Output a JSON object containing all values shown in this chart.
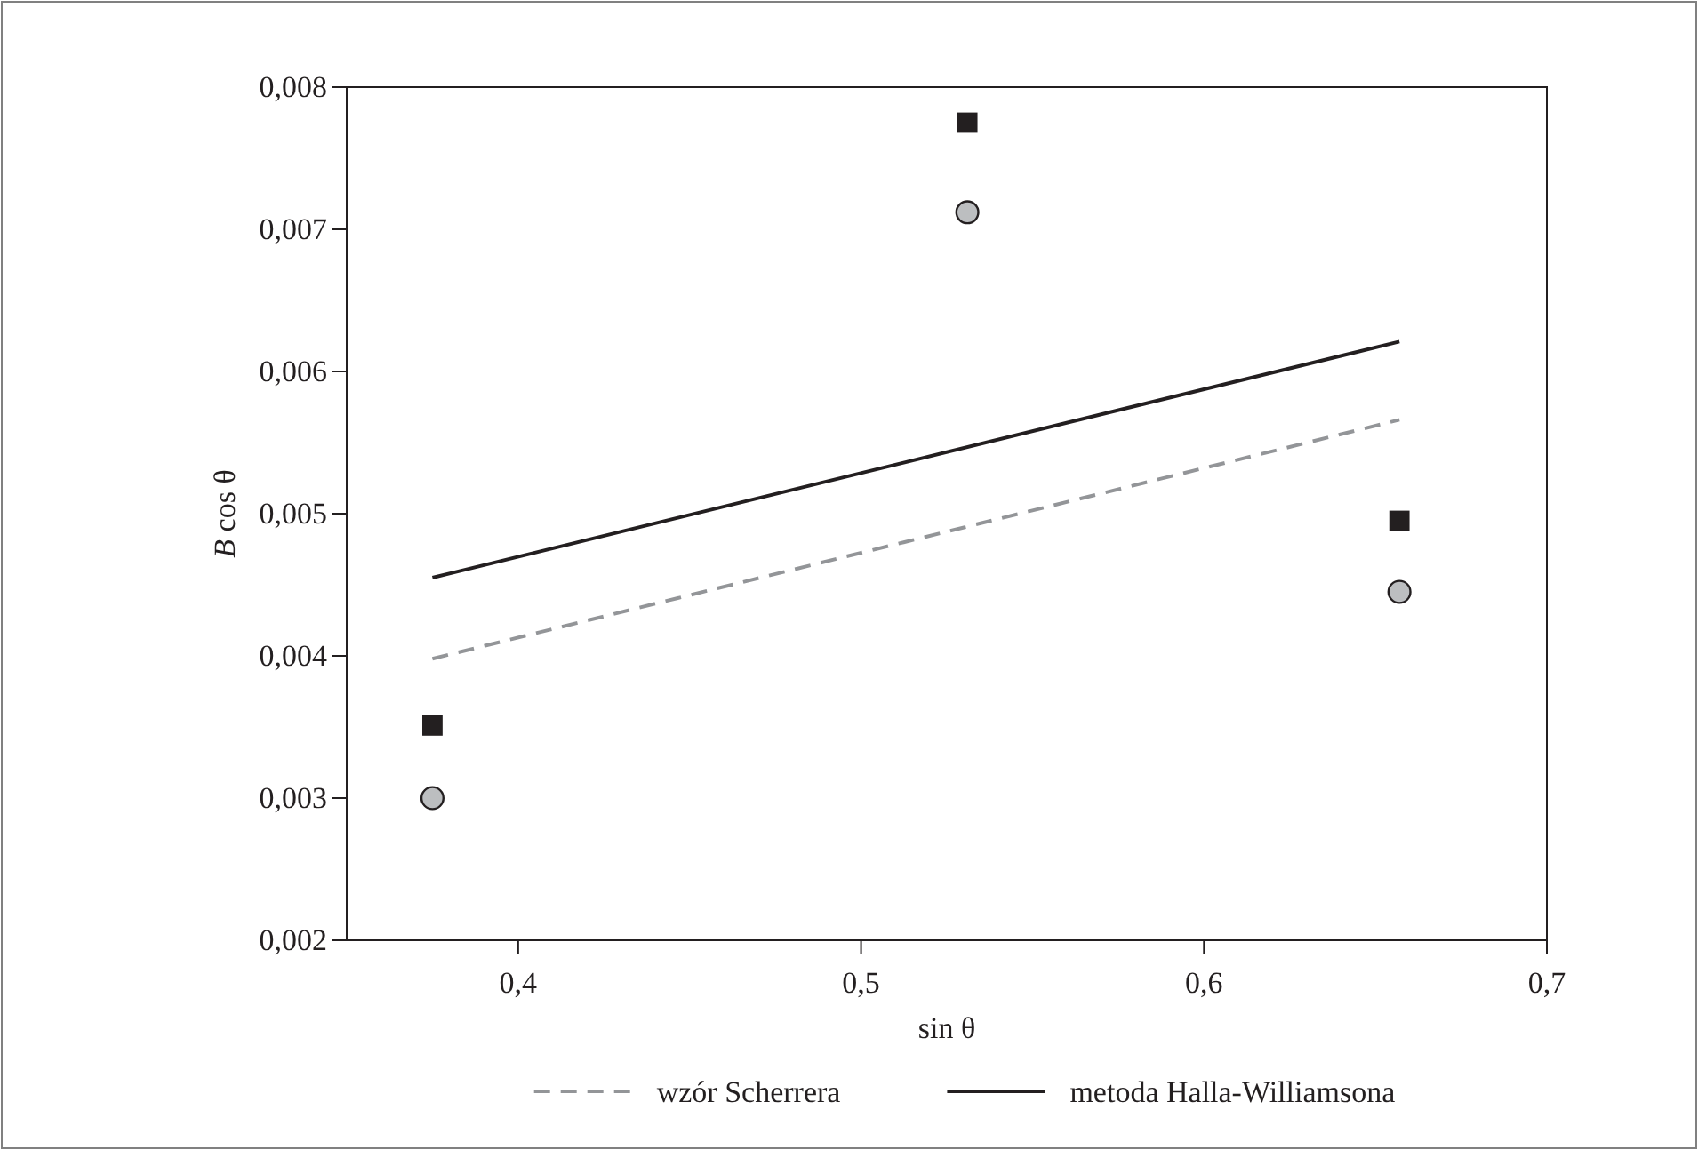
{
  "chart_data": {
    "type": "scatter",
    "xlabel": "sin θ",
    "ylabel": "B cos θ",
    "xlim": [
      0.35,
      0.7
    ],
    "ylim": [
      0.002,
      0.008
    ],
    "xticks": [
      {
        "value": 0.4,
        "label": "0,4"
      },
      {
        "value": 0.5,
        "label": "0,5"
      },
      {
        "value": 0.6,
        "label": "0,6"
      },
      {
        "value": 0.7,
        "label": "0,7"
      }
    ],
    "yticks": [
      {
        "value": 0.002,
        "label": "0,002"
      },
      {
        "value": 0.003,
        "label": "0,003"
      },
      {
        "value": 0.004,
        "label": "0,004"
      },
      {
        "value": 0.005,
        "label": "0,005"
      },
      {
        "value": 0.006,
        "label": "0,006"
      },
      {
        "value": 0.007,
        "label": "0,007"
      },
      {
        "value": 0.008,
        "label": "0,008"
      }
    ],
    "grid": false,
    "legend": "bottom",
    "series": [
      {
        "marker": "square",
        "color": "#231f20",
        "x": [
          0.375,
          0.531,
          0.657
        ],
        "values": [
          0.00351,
          0.00775,
          0.00495
        ]
      },
      {
        "marker": "circle",
        "color": "#bcbec0",
        "x": [
          0.375,
          0.531,
          0.657
        ],
        "values": [
          0.003,
          0.00712,
          0.00445
        ]
      },
      {
        "type": "line",
        "name": "wzór Scherrera",
        "line_style": "dashed",
        "color": "#939598",
        "x": [
          0.375,
          0.657
        ],
        "values": [
          0.00398,
          0.00566
        ]
      },
      {
        "type": "line",
        "name": "metoda Halla-Williamsona",
        "line_style": "solid",
        "color": "#231f20",
        "x": [
          0.375,
          0.657
        ],
        "values": [
          0.00455,
          0.00621
        ]
      }
    ]
  }
}
